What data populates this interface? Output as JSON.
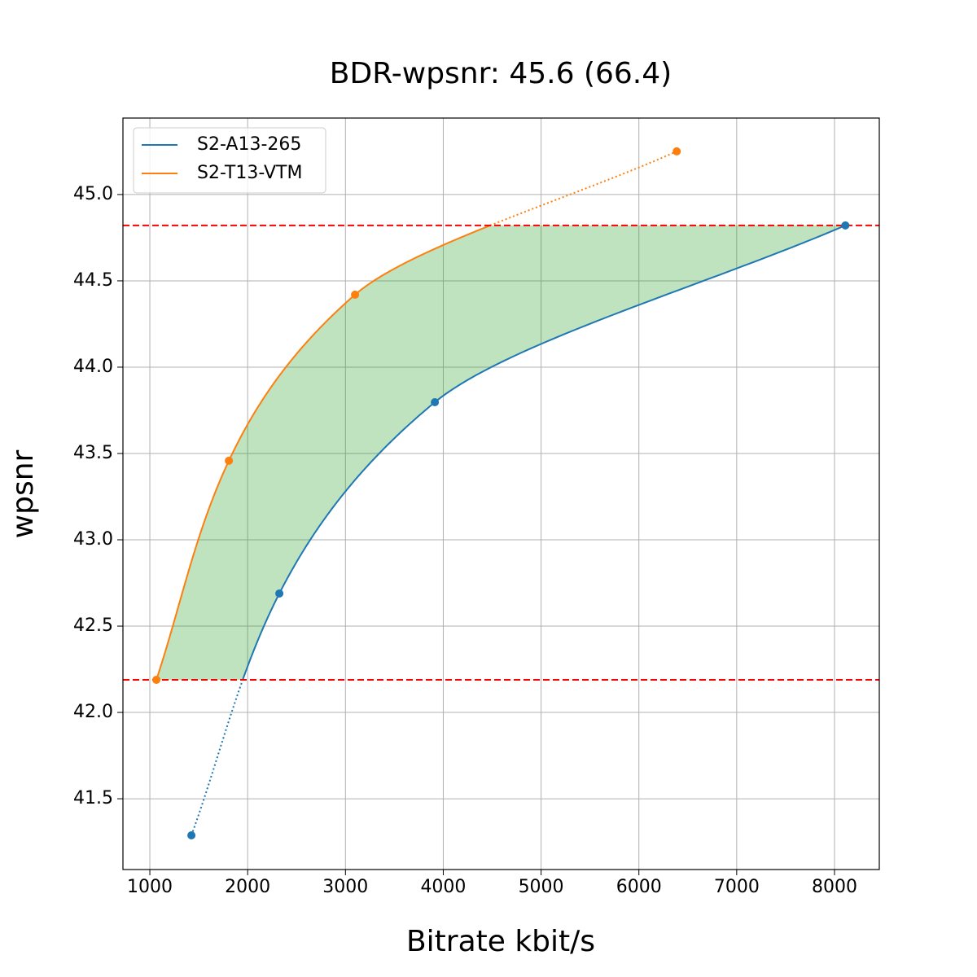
{
  "chart_data": {
    "type": "line",
    "title": "BDR-wpsnr: 45.6 (66.4)",
    "x_label": "Bitrate kbit/s",
    "y_label": "wpsnr",
    "series": [
      {
        "name": "S2-A13-265",
        "color": "#1f77b4",
        "x": [
          1425,
          2324,
          3914,
          8111
        ],
        "values": [
          41.288,
          42.689,
          43.797,
          44.821
        ]
      },
      {
        "name": "S2-T13-VTM",
        "color": "#ff7f0e",
        "x": [
          1067,
          1808,
          3098,
          6387
        ],
        "values": [
          42.189,
          43.458,
          44.42,
          45.25
        ]
      }
    ],
    "hlines": [
      42.189,
      44.821
    ],
    "hline_color": "#ff0000",
    "fill_color": "#2ca02c",
    "xlim": [
      725,
      8458
    ],
    "ylim": [
      41.09,
      45.443
    ],
    "xticks": [
      1000,
      2000,
      3000,
      4000,
      5000,
      6000,
      7000,
      8000
    ],
    "yticks": [
      41.5,
      {
        "value": 42,
        "label": "42.0"
      },
      42.5,
      {
        "value": 43,
        "label": "43.0"
      },
      43.5,
      {
        "value": 44,
        "label": "44.0"
      },
      44.5,
      {
        "value": 45,
        "label": "45.0"
      }
    ],
    "grid": true,
    "legend": "upper left"
  }
}
